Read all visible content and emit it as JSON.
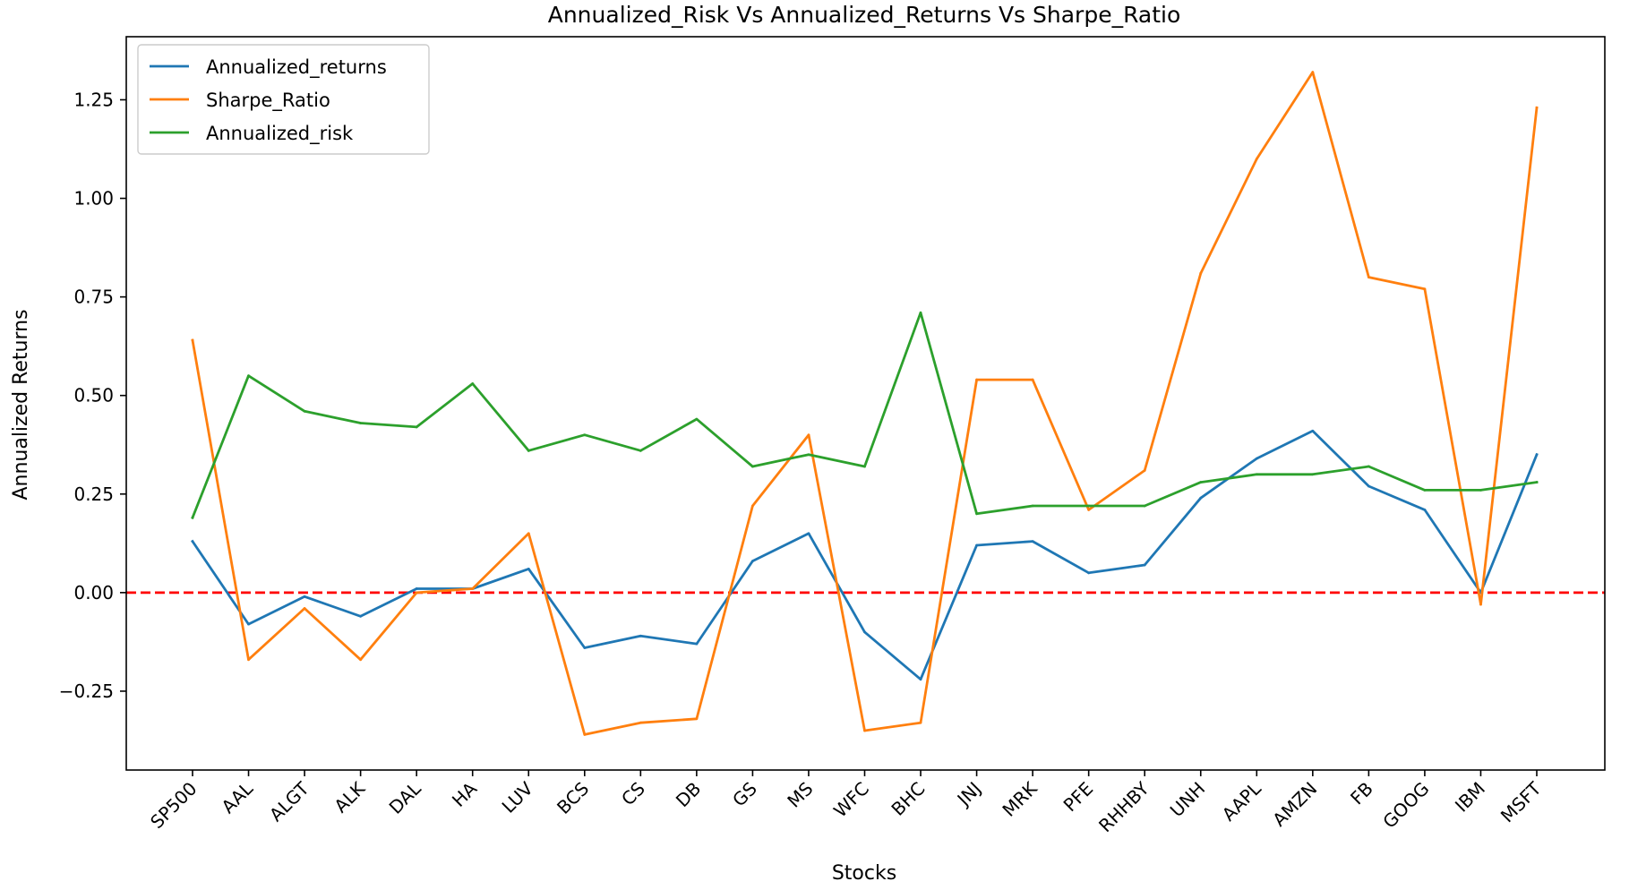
{
  "chart_data": {
    "type": "line",
    "title": "Annualized_Risk Vs Annualized_Returns Vs Sharpe_Ratio",
    "xlabel": "Stocks",
    "ylabel": "Annualized Returns",
    "categories": [
      "SP500",
      "AAL",
      "ALGT",
      "ALK",
      "DAL",
      "HA",
      "LUV",
      "BCS",
      "CS",
      "DB",
      "GS",
      "MS",
      "WFC",
      "BHC",
      "JNJ",
      "MRK",
      "PFE",
      "RHHBY",
      "UNH",
      "AAPL",
      "AMZN",
      "FB",
      "GOOG",
      "IBM",
      "MSFT"
    ],
    "ylim": [
      -0.45,
      1.41
    ],
    "yticks": [
      -0.25,
      0.0,
      0.25,
      0.5,
      0.75,
      1.0,
      1.25
    ],
    "ytick_labels": [
      "−0.25",
      "0.00",
      "0.25",
      "0.50",
      "0.75",
      "1.00",
      "1.25"
    ],
    "grid": false,
    "legend_position": "top-left",
    "series": [
      {
        "name": "Annualized_returns",
        "color": "#1f77b4",
        "values": [
          0.13,
          -0.08,
          -0.01,
          -0.06,
          0.01,
          0.01,
          0.06,
          -0.14,
          -0.11,
          -0.13,
          0.08,
          0.15,
          -0.1,
          -0.22,
          0.12,
          0.13,
          0.05,
          0.07,
          0.24,
          0.34,
          0.41,
          0.27,
          0.21,
          0.0,
          0.35
        ]
      },
      {
        "name": "Sharpe_Ratio",
        "color": "#ff7f0e",
        "values": [
          0.64,
          -0.17,
          -0.04,
          -0.17,
          0.0,
          0.01,
          0.15,
          -0.36,
          -0.33,
          -0.32,
          0.22,
          0.4,
          -0.35,
          -0.33,
          0.54,
          0.54,
          0.21,
          0.31,
          0.81,
          1.1,
          1.32,
          0.8,
          0.77,
          -0.03,
          1.23
        ]
      },
      {
        "name": "Annualized_risk",
        "color": "#2ca02c",
        "values": [
          0.19,
          0.55,
          0.46,
          0.43,
          0.42,
          0.53,
          0.36,
          0.4,
          0.36,
          0.44,
          0.32,
          0.35,
          0.32,
          0.71,
          0.2,
          0.22,
          0.22,
          0.22,
          0.28,
          0.3,
          0.3,
          0.32,
          0.26,
          0.26,
          0.28
        ]
      }
    ],
    "reference_line": {
      "y": 0.0,
      "color": "#ff0000",
      "style": "dashed"
    }
  }
}
